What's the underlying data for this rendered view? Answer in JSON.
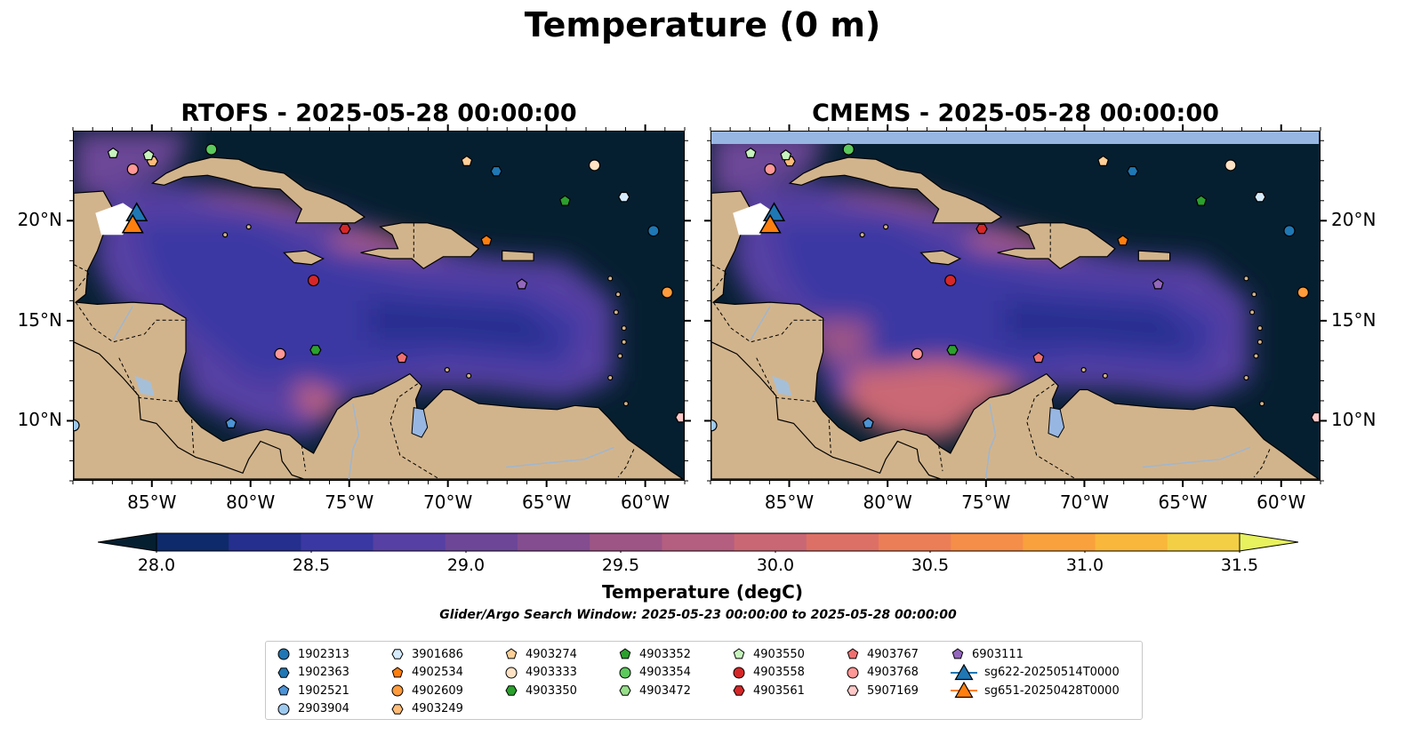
{
  "figure": {
    "suptitle": "Temperature (0 m)",
    "panels": [
      {
        "title": "RTOFS - 2025-05-28 00:00:00",
        "model": "RTOFS"
      },
      {
        "title": "CMEMS - 2025-05-28 00:00:00",
        "model": "CMEMS"
      }
    ],
    "lon_ticks": [
      "85°W",
      "80°W",
      "75°W",
      "70°W",
      "65°W",
      "60°W"
    ],
    "lat_ticks": [
      "20°N",
      "15°N",
      "10°N"
    ],
    "extent": {
      "lon": [
        -89,
        -58
      ],
      "lat": [
        7,
        24.5
      ]
    }
  },
  "colorbar": {
    "label": "Temperature (degC)",
    "ticks": [
      "28.0",
      "28.5",
      "29.0",
      "29.5",
      "30.0",
      "30.5",
      "31.0",
      "31.5"
    ],
    "range": [
      28.0,
      31.5
    ],
    "extend": "both",
    "colors": [
      "#061f30",
      "#0e2a6a",
      "#252f8e",
      "#3a38a3",
      "#5740a3",
      "#6d4698",
      "#844d8f",
      "#9d5586",
      "#b45e80",
      "#ca6774",
      "#dd7066",
      "#ec7e57",
      "#f58e48",
      "#f9a13d",
      "#f9b73b",
      "#f3cf45",
      "#e8f25e"
    ]
  },
  "search_window": "Glider/Argo Search Window: 2025-05-23 00:00:00 to 2025-05-28 00:00:00",
  "legend": {
    "columns": [
      [
        {
          "label": "1902313",
          "marker": "circle",
          "color": "#1f77b4"
        },
        {
          "label": "1902363",
          "marker": "hexagon",
          "color": "#1f77b4"
        },
        {
          "label": "1902521",
          "marker": "pentagon",
          "color": "#4c94d6"
        },
        {
          "label": "2903904",
          "marker": "circle",
          "color": "#9ec9ef"
        }
      ],
      [
        {
          "label": "3901686",
          "marker": "hexagon",
          "color": "#d6ebfb"
        },
        {
          "label": "4902534",
          "marker": "pentagon",
          "color": "#ff7f0e"
        },
        {
          "label": "4902609",
          "marker": "circle",
          "color": "#ff9b3c"
        },
        {
          "label": "4903249",
          "marker": "hexagon",
          "color": "#ffbb78"
        }
      ],
      [
        {
          "label": "4903274",
          "marker": "pentagon",
          "color": "#ffcf98"
        },
        {
          "label": "4903333",
          "marker": "circle",
          "color": "#ffe2c4"
        },
        {
          "label": "4903350",
          "marker": "hexagon",
          "color": "#2ca02c"
        }
      ],
      [
        {
          "label": "4903352",
          "marker": "pentagon",
          "color": "#2ca02c"
        },
        {
          "label": "4903354",
          "marker": "circle",
          "color": "#5cc95c"
        },
        {
          "label": "4903472",
          "marker": "hexagon",
          "color": "#98df8a"
        }
      ],
      [
        {
          "label": "4903550",
          "marker": "pentagon",
          "color": "#c7f2bd"
        },
        {
          "label": "4903558",
          "marker": "circle",
          "color": "#d62728"
        },
        {
          "label": "4903561",
          "marker": "hexagon",
          "color": "#d62728"
        }
      ],
      [
        {
          "label": "4903767",
          "marker": "pentagon",
          "color": "#f07070"
        },
        {
          "label": "4903768",
          "marker": "circle",
          "color": "#ff9896"
        },
        {
          "label": "5907169",
          "marker": "hexagon",
          "color": "#ffc9c8"
        }
      ],
      [
        {
          "label": "6903111",
          "marker": "pentagon",
          "color": "#9467bd"
        },
        {
          "label": "sg622-20250514T0000",
          "marker": "triangle",
          "color": "#1f77b4",
          "line": true
        },
        {
          "label": "sg651-20250428T0000",
          "marker": "triangle",
          "color": "#ff7f0e",
          "line": true
        }
      ]
    ]
  },
  "floats": [
    {
      "id": "4903550",
      "marker": "pentagon",
      "color": "#c7f2bd",
      "lon": -87.0,
      "lat": 23.4
    },
    {
      "id": "4903249",
      "marker": "hexagon",
      "color": "#ffbb78",
      "lon": -85.0,
      "lat": 23.0
    },
    {
      "id": "4903550b",
      "marker": "pentagon",
      "color": "#c7f2bd",
      "lon": -85.2,
      "lat": 23.3
    },
    {
      "id": "4903354",
      "marker": "circle",
      "color": "#5cc95c",
      "lon": -82.0,
      "lat": 23.6
    },
    {
      "id": "4903768",
      "marker": "circle",
      "color": "#ff9896",
      "lon": -86.0,
      "lat": 22.6
    },
    {
      "id": "4903274",
      "marker": "pentagon",
      "color": "#ffcf98",
      "lon": -69.0,
      "lat": 23.0
    },
    {
      "id": "1902363",
      "marker": "hexagon",
      "color": "#1f77b4",
      "lon": -67.5,
      "lat": 22.5
    },
    {
      "id": "4903333",
      "marker": "circle",
      "color": "#ffe2c4",
      "lon": -62.5,
      "lat": 22.8
    },
    {
      "id": "4903352",
      "marker": "pentagon",
      "color": "#2ca02c",
      "lon": -64.0,
      "lat": 21.0
    },
    {
      "id": "3901686",
      "marker": "hexagon",
      "color": "#d6ebfb",
      "lon": -61.0,
      "lat": 21.2
    },
    {
      "id": "1902313",
      "marker": "circle",
      "color": "#1f77b4",
      "lon": -59.5,
      "lat": 19.5
    },
    {
      "id": "4903561",
      "marker": "hexagon",
      "color": "#d62728",
      "lon": -75.2,
      "lat": 19.6
    },
    {
      "id": "4902534",
      "marker": "pentagon",
      "color": "#ff7f0e",
      "lon": -68.0,
      "lat": 19.0
    },
    {
      "id": "4903558",
      "marker": "circle",
      "color": "#d62728",
      "lon": -76.8,
      "lat": 17.0
    },
    {
      "id": "6903111",
      "marker": "pentagon",
      "color": "#9467bd",
      "lon": -66.2,
      "lat": 16.8
    },
    {
      "id": "4902609",
      "marker": "circle",
      "color": "#ff9b3c",
      "lon": -58.8,
      "lat": 16.4
    },
    {
      "id": "4903768b",
      "marker": "circle",
      "color": "#ff9896",
      "lon": -78.5,
      "lat": 13.3
    },
    {
      "id": "4903350",
      "marker": "hexagon",
      "color": "#2ca02c",
      "lon": -76.7,
      "lat": 13.5
    },
    {
      "id": "4903767",
      "marker": "pentagon",
      "color": "#f07070",
      "lon": -72.3,
      "lat": 13.1
    },
    {
      "id": "2903904",
      "marker": "circle",
      "color": "#9ec9ef",
      "lon": -89.0,
      "lat": 9.7
    },
    {
      "id": "1902521",
      "marker": "pentagon",
      "color": "#4c94d6",
      "lon": -81.0,
      "lat": 9.8
    },
    {
      "id": "5907169",
      "marker": "hexagon",
      "color": "#ffc9c8",
      "lon": -58.1,
      "lat": 10.1
    }
  ],
  "gliders": [
    {
      "id": "sg622-20250514T0000",
      "color": "#1f77b4",
      "lon": -85.8,
      "lat": 20.3
    },
    {
      "id": "sg651-20250428T0000",
      "color": "#ff7f0e",
      "lon": -86.0,
      "lat": 19.7
    }
  ]
}
